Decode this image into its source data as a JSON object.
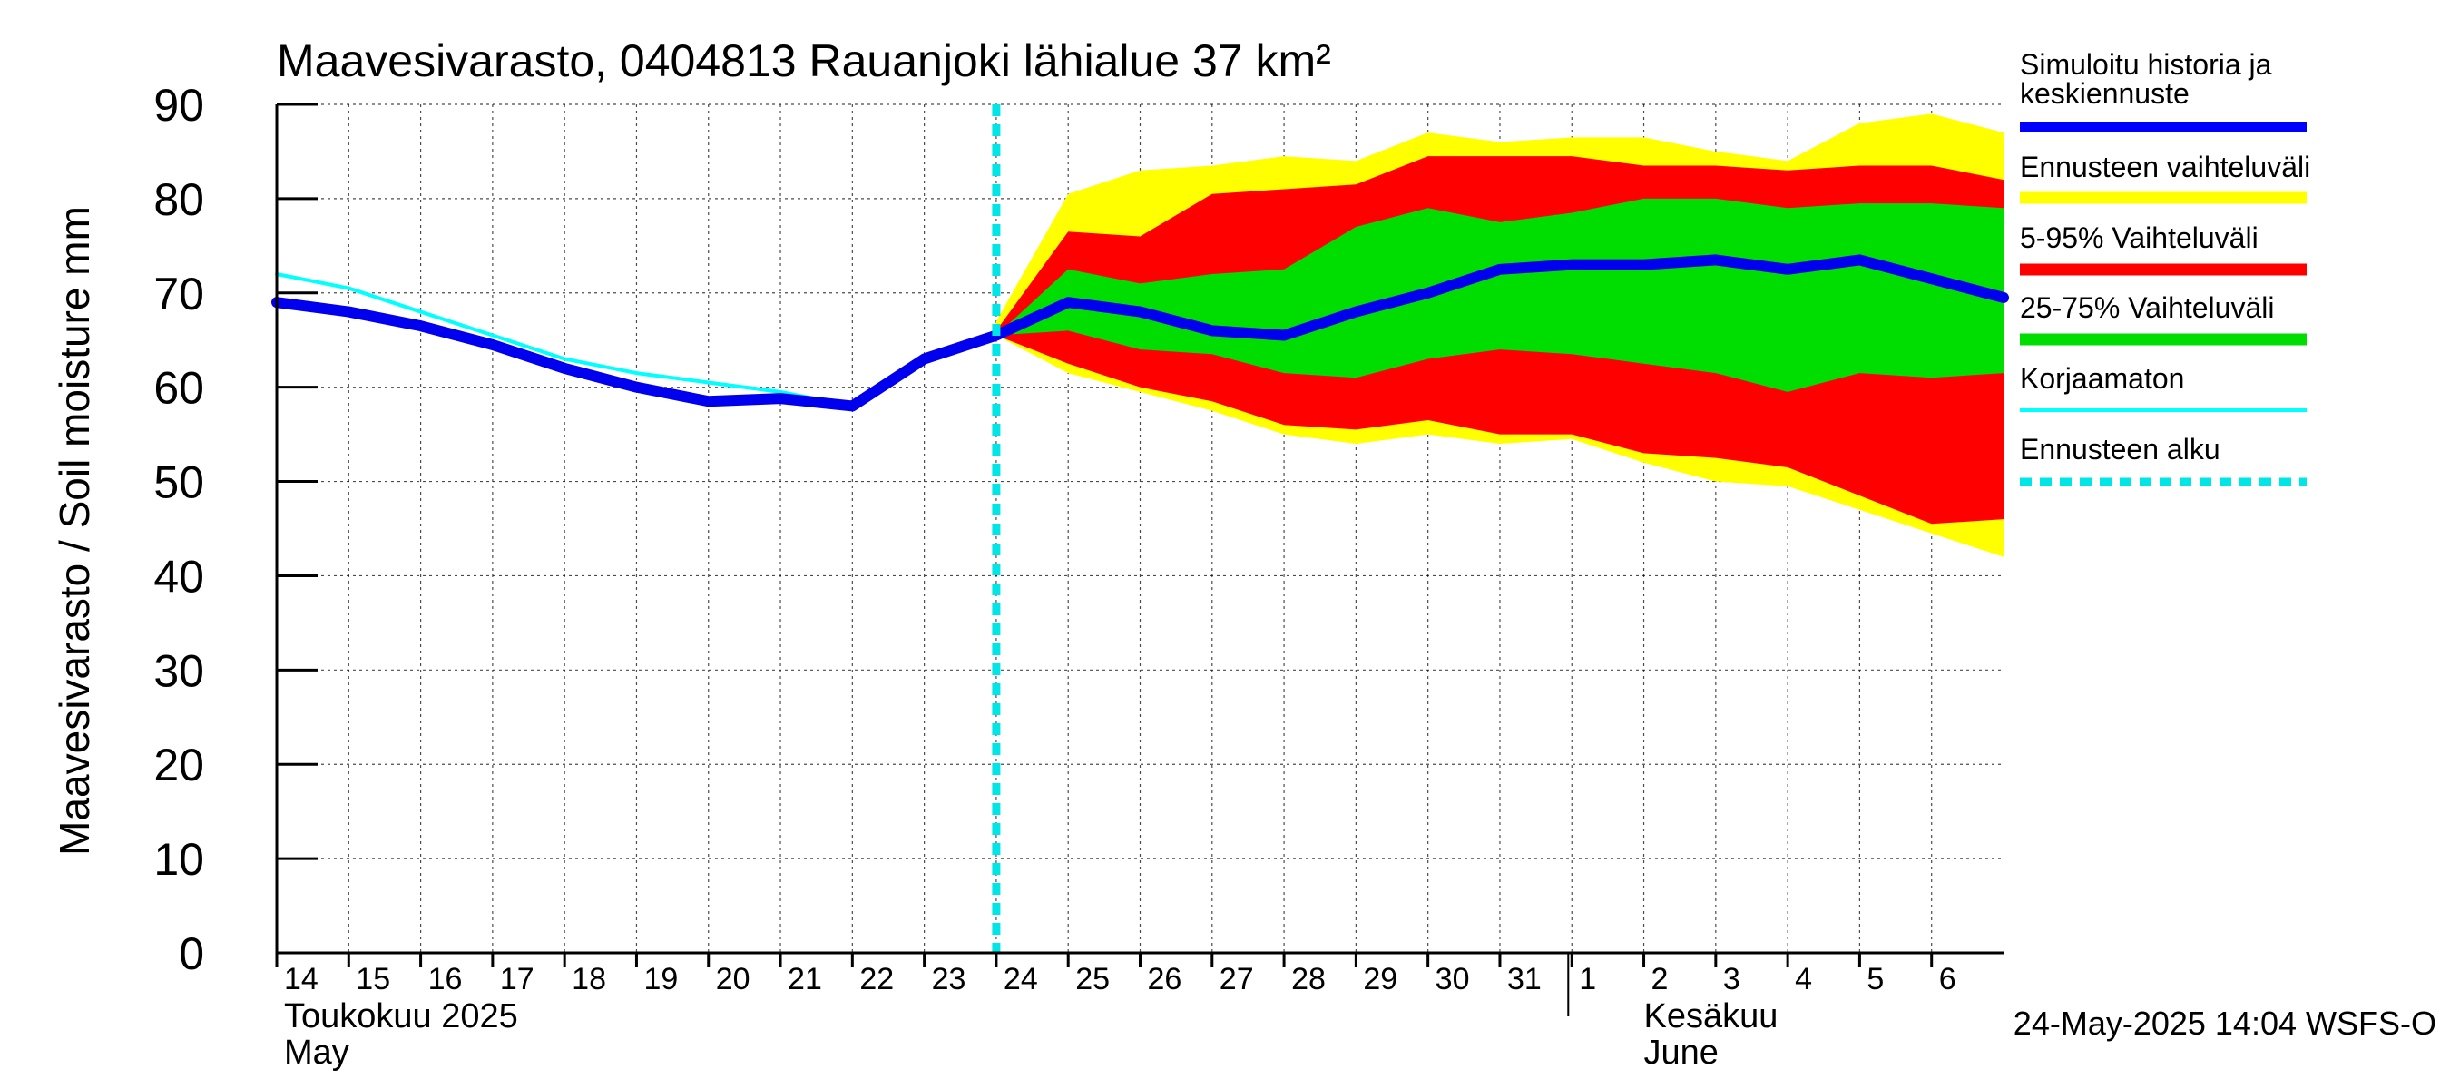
{
  "chart_data": {
    "type": "area",
    "title": "Maavesivarasto, 0404813 Rauanjoki lähialue 37 km²",
    "ylabel": "Maavesivarasto / Soil moisture   mm",
    "ylim": [
      0,
      90
    ],
    "yticks": [
      "0",
      "10",
      "20",
      "30",
      "40",
      "50",
      "60",
      "70",
      "80",
      "90"
    ],
    "grid": true,
    "legend_position": "right",
    "x_ticks": [
      {
        "x": 0,
        "label": "14"
      },
      {
        "x": 1,
        "label": "15"
      },
      {
        "x": 2,
        "label": "16"
      },
      {
        "x": 3,
        "label": "17"
      },
      {
        "x": 4,
        "label": "18"
      },
      {
        "x": 5,
        "label": "19"
      },
      {
        "x": 6,
        "label": "20"
      },
      {
        "x": 7,
        "label": "21"
      },
      {
        "x": 8,
        "label": "22"
      },
      {
        "x": 9,
        "label": "23"
      },
      {
        "x": 10,
        "label": "24"
      },
      {
        "x": 11,
        "label": "25"
      },
      {
        "x": 12,
        "label": "26"
      },
      {
        "x": 13,
        "label": "27"
      },
      {
        "x": 14,
        "label": "28"
      },
      {
        "x": 15,
        "label": "29"
      },
      {
        "x": 16,
        "label": "30"
      },
      {
        "x": 17,
        "label": "31"
      },
      {
        "x": 18,
        "label": "1"
      },
      {
        "x": 19,
        "label": "2"
      },
      {
        "x": 20,
        "label": "3"
      },
      {
        "x": 21,
        "label": "4"
      },
      {
        "x": 22,
        "label": "5"
      },
      {
        "x": 23,
        "label": "6"
      }
    ],
    "month_labels": {
      "may_fi": "Toukokuu  2025",
      "may_en": "May",
      "june_fi": "Kesäkuu",
      "june_en": "June"
    },
    "forecast_start_x": 10,
    "x_range": [
      0,
      24
    ],
    "legend": [
      {
        "label": "Simuloitu historia ja keskiennuste",
        "color": "#0000ff",
        "style": "thick"
      },
      {
        "label": "Ennusteen vaihteluväli",
        "color": "#ffff00",
        "style": "band"
      },
      {
        "label": "5-95% Vaihteluväli",
        "color": "#ff0000",
        "style": "band"
      },
      {
        "label": "25-75% Vaihteluväli",
        "color": "#00dd00",
        "style": "band"
      },
      {
        "label": "Korjaamaton",
        "color": "#00ffff",
        "style": "thin"
      },
      {
        "label": "Ennusteen alku",
        "color": "#00e5e5",
        "style": "dashed"
      }
    ],
    "series": [
      {
        "name": "Ennusteen vaihteluväli",
        "kind": "band",
        "color": "#ffff00",
        "x": [
          10,
          11,
          12,
          13,
          14,
          15,
          16,
          17,
          18,
          19,
          20,
          21,
          22,
          23,
          24
        ],
        "low": [
          65.5,
          61.5,
          59.5,
          57.5,
          55,
          54,
          55,
          54,
          54.5,
          52,
          50,
          49.5,
          47,
          44.5,
          42
        ],
        "high": [
          67,
          80.5,
          83,
          83.5,
          84.5,
          84,
          87,
          86,
          86.5,
          86.5,
          85,
          84,
          88,
          89,
          87
        ]
      },
      {
        "name": "5-95% Vaihteluväli",
        "kind": "band",
        "color": "#ff0000",
        "x": [
          10,
          11,
          12,
          13,
          14,
          15,
          16,
          17,
          18,
          19,
          20,
          21,
          22,
          23,
          24
        ],
        "low": [
          65.5,
          62.5,
          60,
          58.5,
          56,
          55.5,
          56.5,
          55,
          55,
          53,
          52.5,
          51.5,
          48.5,
          45.5,
          46
        ],
        "high": [
          66,
          76.5,
          76,
          80.5,
          81,
          81.5,
          84.5,
          84.5,
          84.5,
          83.5,
          83.5,
          83,
          83.5,
          83.5,
          82
        ]
      },
      {
        "name": "25-75% Vaihteluväli",
        "kind": "band",
        "color": "#00dd00",
        "x": [
          10,
          11,
          12,
          13,
          14,
          15,
          16,
          17,
          18,
          19,
          20,
          21,
          22,
          23,
          24
        ],
        "low": [
          65.5,
          66,
          64,
          63.5,
          61.5,
          61,
          63,
          64,
          63.5,
          62.5,
          61.5,
          59.5,
          61.5,
          61,
          61.5
        ],
        "high": [
          65.5,
          72.5,
          71,
          72,
          72.5,
          77,
          79,
          77.5,
          78.5,
          80,
          80,
          79,
          79.5,
          79.5,
          79
        ]
      },
      {
        "name": "Korjaamaton",
        "kind": "line",
        "color": "#00ffff",
        "width": 4,
        "x": [
          0,
          1,
          2,
          3,
          4,
          5,
          6,
          7,
          8
        ],
        "y": [
          72,
          70.5,
          68,
          65.5,
          63,
          61.5,
          60.5,
          59.5,
          58
        ]
      },
      {
        "name": "Simuloitu historia ja keskiennuste",
        "kind": "line",
        "color": "#0000ee",
        "width": 12,
        "x": [
          0,
          1,
          2,
          3,
          4,
          5,
          6,
          7,
          8,
          9,
          10,
          11,
          12,
          13,
          14,
          15,
          16,
          17,
          18,
          19,
          20,
          21,
          22,
          23,
          24
        ],
        "y": [
          69,
          68,
          66.5,
          64.5,
          62,
          60,
          58.5,
          58.8,
          58,
          63,
          65.5,
          69,
          68,
          66,
          65.5,
          68,
          70,
          72.5,
          73,
          73,
          73.5,
          72.5,
          73.5,
          71.5,
          69.5
        ]
      }
    ],
    "footer": "24-May-2025 14:04 WSFS-O"
  }
}
